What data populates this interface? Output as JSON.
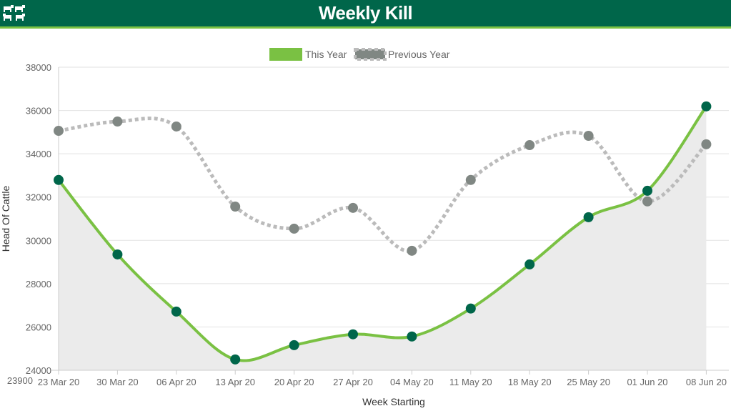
{
  "header": {
    "title": "Weekly Kill",
    "logo_icon": "cattle-icon"
  },
  "chart_data": {
    "type": "line",
    "title": "Weekly Kill",
    "xlabel": "Week Starting",
    "ylabel": "Head Of Cattle",
    "categories": [
      "23 Mar 20",
      "30 Mar 20",
      "06 Apr 20",
      "13 Apr 20",
      "20 Apr 20",
      "27 Apr 20",
      "04 May 20",
      "11 May 20",
      "18 May 20",
      "25 May 20",
      "01 Jun 20",
      "08 Jun 20"
    ],
    "ylim": [
      24000,
      38000
    ],
    "yticks": [
      24000,
      26000,
      28000,
      30000,
      32000,
      34000,
      36000,
      38000
    ],
    "ymin_label": "23900",
    "grid": true,
    "legend_position": "top-center",
    "series": [
      {
        "name": "This Year",
        "color": "#7ac143",
        "marker_color": "#00664a",
        "style": "solid",
        "fill": "#ebebeb",
        "values": [
          32790,
          29350,
          26710,
          24500,
          25160,
          25660,
          25560,
          26850,
          28890,
          31070,
          32290,
          36190
        ]
      },
      {
        "name": "Previous Year",
        "color": "#bbbbbb",
        "marker_color": "#808783",
        "style": "dotted",
        "values": [
          35060,
          35490,
          35260,
          31560,
          30540,
          31500,
          29520,
          32790,
          34400,
          34830,
          31800,
          34440
        ]
      }
    ]
  }
}
